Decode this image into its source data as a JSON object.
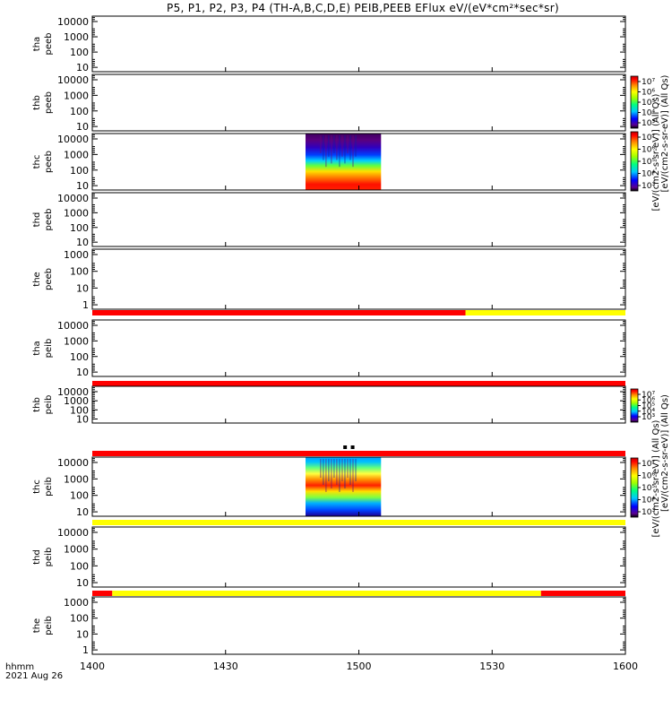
{
  "title": "P5, P1, P2, P3, P4 (TH-A,B,C,D,E) PEIB,PEEB EFlux eV/(eV*cm²*sec*sr)",
  "time_axis": {
    "row_label": "hhmm",
    "date": "2021 Aug 26",
    "ticks": [
      "1400",
      "1430",
      "1500",
      "1530",
      "1600"
    ],
    "range_minutes": [
      0,
      120
    ]
  },
  "colorbar_top": {
    "label": "[eV/(cm2-s-sr-eV)] (All Qs)",
    "overlay_label": "[eV/(cm2-s-sr-eV)] (All Qs)",
    "ticks_upper": [
      "10⁷",
      "10⁶",
      "10⁵",
      "10⁴",
      "10³"
    ],
    "ticks_lower": [
      "10⁷",
      "10⁶",
      "10⁵",
      "10⁴",
      "10³"
    ]
  },
  "colorbar_bottom": {
    "label": "[eV/(cm2-s-sr-eV)] (All Qs)",
    "overlay_label": "[eV/(cm2-s-sr-eV)] (All Qs)",
    "ticks_upper": [
      "10⁷",
      "10⁶",
      "10⁵",
      "10⁴",
      "10³"
    ],
    "ticks_lower": [
      "10⁷",
      "10⁶",
      "10⁵",
      "10⁴",
      "10³"
    ]
  },
  "colors": {
    "flag_red": "#ff0000",
    "flag_yellow": "#ffff00",
    "frame": "#000000"
  },
  "chart_data": {
    "type": "heatmap",
    "x_unit": "minutes after 14:00 UT",
    "panels": [
      {
        "label": [
          "tha",
          "peeb"
        ],
        "yticks": [
          "10000",
          "1000",
          "100",
          "10"
        ],
        "spectrogram": null
      },
      {
        "label": [
          "thb",
          "peeb"
        ],
        "yticks": [
          "10000",
          "1000",
          "100",
          "10"
        ],
        "spectrogram": null
      },
      {
        "label": [
          "thc",
          "peeb"
        ],
        "yticks": [
          "10000",
          "1000",
          "100",
          "10"
        ],
        "spectrogram": {
          "x_range": [
            48,
            65
          ],
          "profile": "electron"
        }
      },
      {
        "label": [
          "thd",
          "peeb"
        ],
        "yticks": [
          "10000",
          "1000",
          "100",
          "10"
        ],
        "spectrogram": null
      },
      {
        "label": [
          "the",
          "peeb"
        ],
        "yticks": [
          "1000",
          "100",
          "10",
          "1"
        ],
        "spectrogram": null
      },
      {
        "label": [
          "tha",
          "peib"
        ],
        "yticks": [
          "10000",
          "1000",
          "100",
          "10"
        ],
        "spectrogram": null
      },
      {
        "label": [
          "thb",
          "peib"
        ],
        "yticks": [
          "10000",
          "1000",
          "100",
          "10"
        ],
        "spectrogram": null
      },
      {
        "label": [
          "thc",
          "peib"
        ],
        "yticks": [
          "10000",
          "1000",
          "100",
          "10"
        ],
        "spectrogram": {
          "x_range": [
            48,
            65
          ],
          "profile": "ion"
        }
      },
      {
        "label": [
          "thd",
          "peib"
        ],
        "yticks": [
          "10000",
          "1000",
          "100",
          "10"
        ],
        "spectrogram": null
      },
      {
        "label": [
          "the",
          "peib"
        ],
        "yticks": [
          "1000",
          "100",
          "10",
          "1"
        ],
        "spectrogram": null
      }
    ],
    "flag_bars": [
      {
        "segments": [
          {
            "x": [
              0,
              84
            ],
            "color": "red"
          },
          {
            "x": [
              84,
              120
            ],
            "color": "yellow"
          }
        ]
      },
      {
        "segments": [
          {
            "x": [
              0,
              120
            ],
            "color": "red"
          }
        ]
      },
      {
        "segments": [
          {
            "x": [
              0,
              120
            ],
            "color": "red"
          }
        ]
      },
      {
        "segments": [
          {
            "x": [
              0,
              120
            ],
            "color": "yellow"
          }
        ]
      },
      {
        "segments": [
          {
            "x": [
              0,
              4.5
            ],
            "color": "red"
          },
          {
            "x": [
              4.5,
              101
            ],
            "color": "yellow"
          },
          {
            "x": [
              101,
              120
            ],
            "color": "red"
          }
        ]
      }
    ]
  }
}
